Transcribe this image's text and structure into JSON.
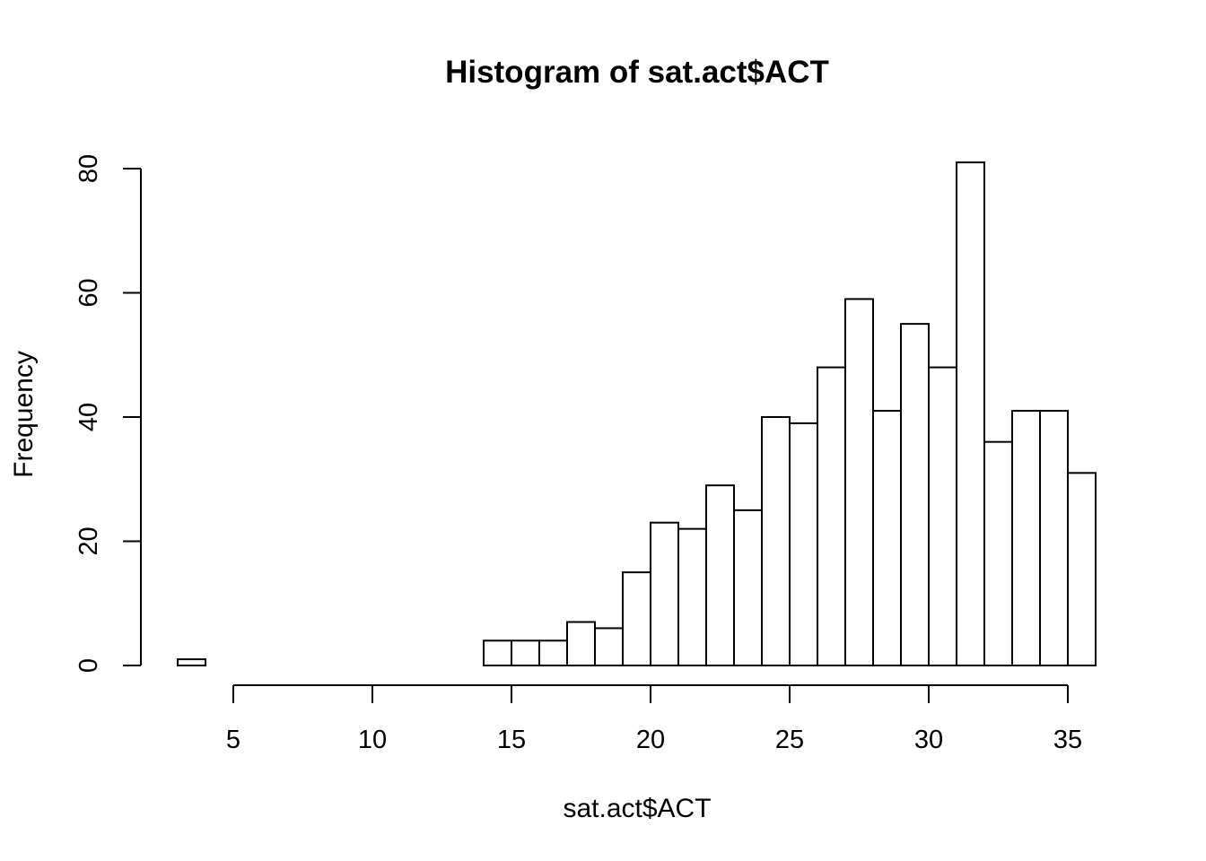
{
  "chart_data": {
    "type": "bar",
    "title": "Histogram of sat.act$ACT",
    "xlabel": "sat.act$ACT",
    "ylabel": "Frequency",
    "xlim": [
      3,
      36
    ],
    "ylim": [
      0,
      81
    ],
    "x_ticks": [
      5,
      10,
      15,
      20,
      25,
      30,
      35
    ],
    "y_ticks": [
      0,
      20,
      40,
      60,
      80
    ],
    "grid": false,
    "legend": "none",
    "bar_color": "#ffffff",
    "line_color": "#000000",
    "bins": [
      {
        "from": 3,
        "to": 4,
        "count": 1
      },
      {
        "from": 4,
        "to": 5,
        "count": 0
      },
      {
        "from": 5,
        "to": 6,
        "count": 0
      },
      {
        "from": 6,
        "to": 7,
        "count": 0
      },
      {
        "from": 7,
        "to": 8,
        "count": 0
      },
      {
        "from": 8,
        "to": 9,
        "count": 0
      },
      {
        "from": 9,
        "to": 10,
        "count": 0
      },
      {
        "from": 10,
        "to": 11,
        "count": 0
      },
      {
        "from": 11,
        "to": 12,
        "count": 0
      },
      {
        "from": 12,
        "to": 13,
        "count": 0
      },
      {
        "from": 13,
        "to": 14,
        "count": 0
      },
      {
        "from": 14,
        "to": 15,
        "count": 4
      },
      {
        "from": 15,
        "to": 16,
        "count": 4
      },
      {
        "from": 16,
        "to": 17,
        "count": 4
      },
      {
        "from": 17,
        "to": 18,
        "count": 7
      },
      {
        "from": 18,
        "to": 19,
        "count": 6
      },
      {
        "from": 19,
        "to": 20,
        "count": 15
      },
      {
        "from": 20,
        "to": 21,
        "count": 23
      },
      {
        "from": 21,
        "to": 22,
        "count": 22
      },
      {
        "from": 22,
        "to": 23,
        "count": 29
      },
      {
        "from": 23,
        "to": 24,
        "count": 25
      },
      {
        "from": 24,
        "to": 25,
        "count": 40
      },
      {
        "from": 25,
        "to": 26,
        "count": 39
      },
      {
        "from": 26,
        "to": 27,
        "count": 48
      },
      {
        "from": 27,
        "to": 28,
        "count": 59
      },
      {
        "from": 28,
        "to": 29,
        "count": 41
      },
      {
        "from": 29,
        "to": 30,
        "count": 55
      },
      {
        "from": 30,
        "to": 31,
        "count": 48
      },
      {
        "from": 31,
        "to": 32,
        "count": 81
      },
      {
        "from": 32,
        "to": 33,
        "count": 36
      },
      {
        "from": 33,
        "to": 34,
        "count": 41
      },
      {
        "from": 34,
        "to": 35,
        "count": 41
      },
      {
        "from": 35,
        "to": 36,
        "count": 31
      }
    ]
  }
}
